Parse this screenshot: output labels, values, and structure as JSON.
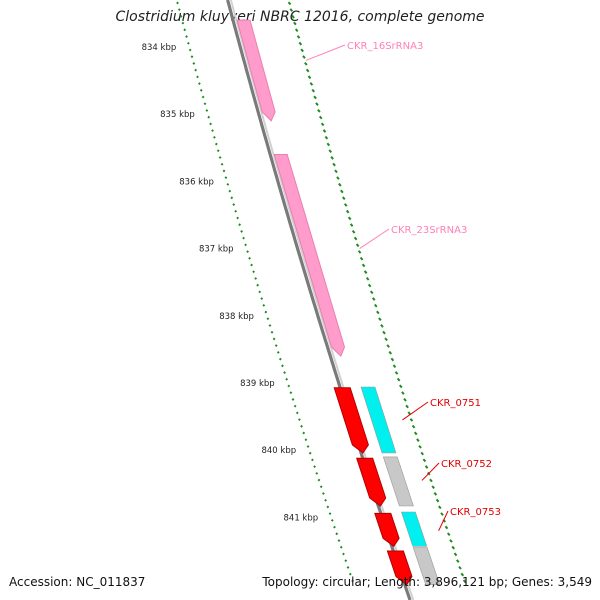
{
  "title": "Clostridium kluyveri NBRC 12016, complete genome",
  "accession_text": "Accession: NC_011837",
  "summary_text": "Topology: circular; Length: 3,896,121 bp; Genes: 3,549",
  "colors": {
    "backbone": "#8c8c8c",
    "tick": "#1e8c1e",
    "rrna": "#ff9ccc",
    "rrna_label": "#ff80b8",
    "gene_red": "#ff0000",
    "gene_cyan": "#00f0f0",
    "gene_gray": "#c8c8c8",
    "gene_label": "#e00000"
  },
  "chart_data": {
    "type": "genome-map",
    "ruler": {
      "unit": "kbp",
      "labels": [
        "834 kbp",
        "835 kbp",
        "836 kbp",
        "837 kbp",
        "838 kbp",
        "839 kbp",
        "840 kbp",
        "841 kbp"
      ],
      "positions_kbp": [
        834,
        835,
        836,
        837,
        838,
        839,
        840,
        841
      ]
    },
    "features": [
      {
        "name": "CKR_16SrRNA3",
        "type": "rRNA",
        "start_kbp": 833.6,
        "end_kbp": 835.1,
        "color": "rrna"
      },
      {
        "name": "CKR_23SrRNA3",
        "type": "rRNA",
        "start_kbp": 835.6,
        "end_kbp": 838.6,
        "color": "rrna"
      },
      {
        "name": "CKR_0751",
        "type": "CDS",
        "start_kbp": 839.07,
        "end_kbp": 840.04,
        "color": "gene_red"
      },
      {
        "name": "CKR_0752",
        "type": "CDS",
        "start_kbp": 840.12,
        "end_kbp": 840.83,
        "color": "gene_red"
      },
      {
        "name": "CKR_0753",
        "type": "CDS",
        "start_kbp": 840.94,
        "end_kbp": 841.43,
        "color": "gene_red"
      },
      {
        "name": "",
        "type": "CDS",
        "start_kbp": 841.5,
        "end_kbp": 842.0,
        "color": "gene_red"
      }
    ],
    "inner_track": [
      {
        "start_kbp": 839.06,
        "end_kbp": 840.04,
        "color": "gene_cyan"
      },
      {
        "start_kbp": 840.1,
        "end_kbp": 840.83,
        "color": "gene_gray"
      },
      {
        "start_kbp": 840.92,
        "end_kbp": 841.43,
        "color": "gene_cyan"
      },
      {
        "start_kbp": 841.45,
        "end_kbp": 842.0,
        "color": "gene_gray"
      }
    ]
  }
}
